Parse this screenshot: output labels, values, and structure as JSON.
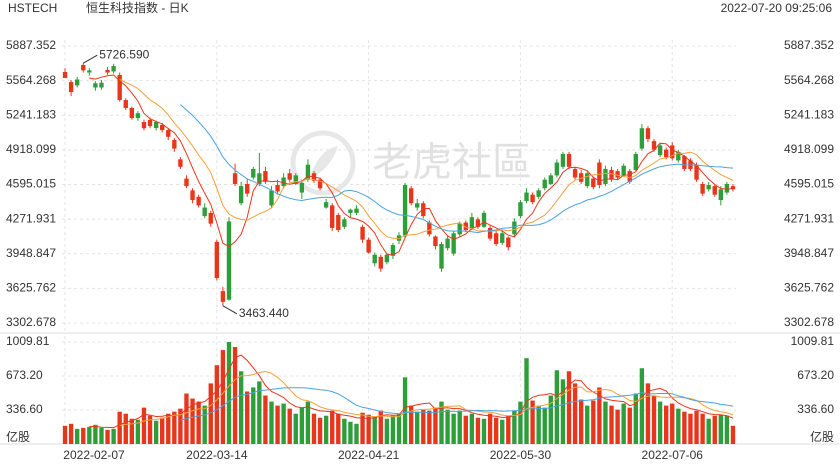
{
  "header": {
    "symbol": "HSTECH",
    "name": "恒生科技指数 - 日K",
    "timestamp": "2022-07-20 09:25:06",
    "watermark": "老虎社區"
  },
  "chart_data": {
    "type": "candlestick",
    "categories": [
      "2022-02-07",
      null,
      null,
      null,
      null,
      null,
      null,
      null,
      null,
      null,
      null,
      null,
      null,
      null,
      null,
      null,
      null,
      null,
      null,
      null,
      null,
      null,
      null,
      null,
      null,
      "2022-03-14",
      null,
      null,
      null,
      null,
      null,
      null,
      null,
      null,
      null,
      null,
      null,
      null,
      null,
      null,
      null,
      null,
      null,
      null,
      null,
      null,
      null,
      null,
      null,
      null,
      "2022-04-21",
      null,
      null,
      null,
      null,
      null,
      null,
      null,
      null,
      null,
      null,
      null,
      null,
      null,
      null,
      null,
      null,
      null,
      null,
      null,
      null,
      null,
      null,
      null,
      null,
      "2022-05-30",
      null,
      null,
      null,
      null,
      null,
      null,
      null,
      null,
      null,
      null,
      null,
      null,
      null,
      null,
      null,
      null,
      null,
      null,
      null,
      null,
      null,
      null,
      null,
      null,
      "2022-07-06",
      null,
      null,
      null,
      null,
      null,
      null,
      null,
      null,
      null,
      null
    ],
    "open": [
      5645,
      5551,
      5520,
      5710,
      5640,
      5500,
      5500,
      5663,
      5650,
      5617,
      5383,
      5309,
      5215,
      5178,
      5197,
      5122,
      5150,
      5103,
      5010,
      4830,
      4650,
      4540,
      4480,
      4300,
      4330,
      4060,
      3600,
      3520,
      4700,
      4420,
      4600,
      4660,
      4600,
      4720,
      4400,
      4590,
      4580,
      4700,
      4600,
      4520,
      4640,
      4700,
      4640,
      4380,
      4400,
      4310,
      4200,
      4330,
      4330,
      4200,
      4080,
      3860,
      3920,
      3870,
      3930,
      4070,
      4120,
      4560,
      4380,
      4420,
      4240,
      4110,
      3810,
      4000,
      3950,
      4130,
      4240,
      4190,
      4270,
      4200,
      4190,
      4140,
      4050,
      4100,
      4130,
      4300,
      4440,
      4500,
      4480,
      4560,
      4600,
      4680,
      4760,
      4880,
      4740,
      4700,
      4580,
      4650,
      4800,
      4600,
      4730,
      4720,
      4680,
      4720,
      4730,
      4930,
      5120,
      5000,
      4870,
      4920,
      4960,
      4820,
      4860,
      4820,
      4780,
      4600,
      4550,
      4580,
      4450,
      4520,
      4580
    ],
    "high": [
      5680,
      5570,
      5600,
      5726.59,
      5680,
      5560,
      5570,
      5690,
      5720,
      5640,
      5400,
      5320,
      5280,
      5200,
      5220,
      5190,
      5170,
      5120,
      5030,
      4850,
      4680,
      4560,
      4500,
      4420,
      4350,
      4080,
      3640,
      4290,
      4790,
      4620,
      4650,
      4760,
      4890,
      4760,
      4580,
      4640,
      4700,
      4740,
      4700,
      4640,
      4830,
      4720,
      4660,
      4460,
      4420,
      4330,
      4290,
      4370,
      4400,
      4220,
      4100,
      3960,
      3940,
      3960,
      4050,
      4150,
      4610,
      4580,
      4460,
      4440,
      4260,
      4120,
      4060,
      4110,
      4160,
      4250,
      4260,
      4330,
      4290,
      4350,
      4210,
      4160,
      4170,
      4110,
      4280,
      4450,
      4560,
      4520,
      4560,
      4660,
      4700,
      4830,
      4900,
      4900,
      4760,
      4730,
      4720,
      4670,
      4830,
      4770,
      4760,
      4740,
      4790,
      4740,
      4900,
      5160,
      5140,
      5020,
      4980,
      4940,
      4990,
      4920,
      4870,
      4840,
      4800,
      4620,
      4620,
      4600,
      4580,
      4620,
      4600
    ],
    "low": [
      5600,
      5420,
      5500,
      5640,
      5610,
      5470,
      5480,
      5620,
      5630,
      5370,
      5290,
      5200,
      5190,
      5100,
      5120,
      5100,
      5080,
      5010,
      4900,
      4740,
      4560,
      4420,
      4380,
      4280,
      4200,
      3700,
      3463.44,
      3510,
      4580,
      4400,
      4480,
      4640,
      4580,
      4600,
      4380,
      4500,
      4560,
      4620,
      4590,
      4460,
      4620,
      4610,
      4540,
      4370,
      4160,
      4150,
      4180,
      4290,
      4310,
      4050,
      3950,
      3830,
      3780,
      3850,
      3900,
      4040,
      4100,
      4400,
      4350,
      4280,
      4110,
      3990,
      3780,
      3980,
      3930,
      4110,
      4150,
      4170,
      4180,
      4190,
      4070,
      4020,
      4030,
      3980,
      4110,
      4280,
      4420,
      4410,
      4460,
      4540,
      4590,
      4660,
      4740,
      4740,
      4640,
      4600,
      4560,
      4550,
      4560,
      4580,
      4620,
      4640,
      4670,
      4600,
      4720,
      4910,
      4990,
      4900,
      4850,
      4830,
      4820,
      4800,
      4720,
      4720,
      4620,
      4490,
      4530,
      4480,
      4400,
      4500,
      4530
    ],
    "close": [
      5589,
      5458,
      5575,
      5660,
      5660,
      5540,
      5545,
      5640,
      5700,
      5383,
      5309,
      5215,
      5260,
      5120,
      5140,
      5178,
      5103,
      5040,
      4930,
      4760,
      4580,
      4450,
      4400,
      4380,
      4230,
      3722,
      3500,
      4250,
      4600,
      4580,
      4510,
      4740,
      4700,
      4620,
      4540,
      4530,
      4660,
      4640,
      4680,
      4610,
      4780,
      4630,
      4560,
      4430,
      4190,
      4170,
      4270,
      4360,
      4370,
      4080,
      3960,
      3940,
      3810,
      3940,
      4030,
      4120,
      4590,
      4420,
      4420,
      4300,
      4130,
      4020,
      4040,
      4090,
      4140,
      4230,
      4170,
      4290,
      4200,
      4330,
      4090,
      4040,
      4140,
      4010,
      4250,
      4430,
      4520,
      4430,
      4540,
      4640,
      4680,
      4800,
      4880,
      4760,
      4660,
      4620,
      4700,
      4570,
      4590,
      4740,
      4640,
      4660,
      4770,
      4620,
      4880,
      5120,
      5020,
      4920,
      4960,
      4850,
      4840,
      4900,
      4740,
      4740,
      4640,
      4510,
      4590,
      4500,
      4550,
      4600,
      4550
    ],
    "volume": [
      180,
      200,
      150,
      160,
      170,
      190,
      160,
      140,
      150,
      320,
      300,
      250,
      240,
      360,
      280,
      230,
      260,
      300,
      320,
      350,
      500,
      450,
      420,
      380,
      600,
      780,
      930,
      1009.81,
      960,
      720,
      520,
      560,
      620,
      480,
      420,
      380,
      400,
      350,
      300,
      360,
      420,
      300,
      260,
      280,
      330,
      300,
      250,
      220,
      200,
      310,
      290,
      270,
      330,
      250,
      280,
      300,
      660,
      380,
      320,
      340,
      330,
      360,
      420,
      340,
      300,
      330,
      280,
      300,
      260,
      250,
      300,
      260,
      240,
      280,
      330,
      420,
      850,
      430,
      380,
      360,
      480,
      730,
      640,
      720,
      600,
      440,
      380,
      430,
      560,
      420,
      380,
      340,
      400,
      360,
      500,
      750,
      600,
      480,
      420,
      380,
      400,
      350,
      320,
      300,
      330,
      300,
      250,
      280,
      290,
      280,
      180
    ],
    "ylim": [
      3302.678,
      5887.352
    ],
    "yticks": [
      3302.678,
      3625.762,
      3948.847,
      4271.931,
      4595.015,
      4918.099,
      5241.183,
      5564.268,
      5887.352
    ],
    "volume_lim": [
      0,
      1009.81
    ],
    "volume_ticks": [
      {
        "value": 336.6,
        "label": "336.60"
      },
      {
        "value": 673.2,
        "label": "673.20"
      },
      1009.81
    ],
    "volume_unit": "亿股",
    "max_label": "5726.590",
    "min_label": "3463.440",
    "up_color": "#2e9e3a",
    "down_color": "#e8361c",
    "moving_averages": [
      {
        "period": 5,
        "color": "#e8361c"
      },
      {
        "period": 10,
        "color": "#f5a03c"
      },
      {
        "period": 20,
        "color": "#4aa3df"
      }
    ],
    "grid": true
  }
}
